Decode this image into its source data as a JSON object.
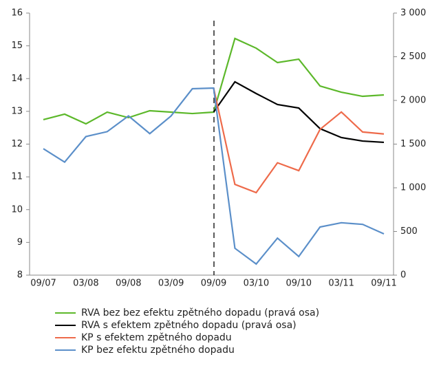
{
  "chart_data": {
    "type": "line",
    "categories": [
      "09/07",
      null,
      "03/08",
      null,
      "09/08",
      null,
      "03/09",
      null,
      "09/09",
      null,
      "03/10",
      null,
      "09/10",
      null,
      "03/11",
      null,
      "09/11"
    ],
    "ylim": [
      8,
      16
    ],
    "yticks": [
      8,
      9,
      10,
      11,
      12,
      13,
      14,
      15,
      16
    ],
    "y2lim": [
      0,
      3000
    ],
    "y2ticks": [
      0,
      500,
      {
        "value": 1000,
        "label": "1 000"
      },
      {
        "value": 1500,
        "label": "1 500"
      },
      {
        "value": 2000,
        "label": "2 000"
      },
      {
        "value": 2500,
        "label": "2 500"
      },
      {
        "value": 3000,
        "label": "3 000"
      }
    ],
    "series": [
      {
        "name": "RVA bez bez efektu zpětného dopadu (pravá osa)",
        "color": "#5cb82a",
        "axis": "y2",
        "values": [
          1780,
          1843,
          1732,
          1866,
          1803,
          1882,
          1866,
          1850,
          1866,
          2709,
          2598,
          2433,
          2472,
          2165,
          2094,
          2047,
          2063
        ]
      },
      {
        "name": "RVA s efektem zpětného dopadu (pravá osa)",
        "color": "#000000",
        "axis": "y2",
        "values": [
          null,
          null,
          null,
          null,
          null,
          null,
          null,
          null,
          1866,
          2213,
          2079,
          1953,
          1913,
          1677,
          1575,
          1535,
          1520
        ]
      },
      {
        "name": "KP s efektem zpětného dopadu",
        "color": "#ee6a4a",
        "values": [
          null,
          null,
          null,
          null,
          null,
          null,
          null,
          null,
          13.71,
          10.77,
          10.52,
          11.43,
          11.19,
          12.45,
          12.98,
          12.37,
          12.31
        ]
      },
      {
        "name": "KP bez efektu zpětného dopadu",
        "color": "#5b8fc9",
        "values": [
          11.86,
          11.45,
          12.23,
          12.38,
          12.86,
          12.32,
          12.86,
          13.69,
          13.71,
          8.82,
          8.34,
          9.13,
          8.57,
          9.47,
          9.6,
          9.55,
          9.26
        ]
      }
    ]
  }
}
